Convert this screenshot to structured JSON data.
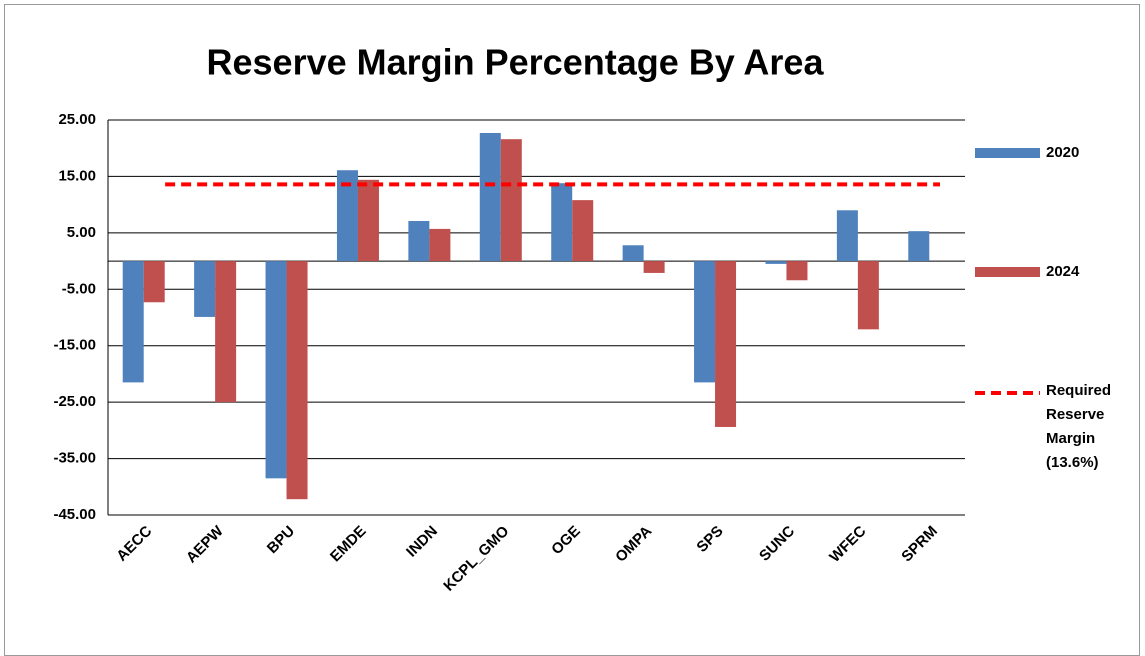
{
  "chart_data": {
    "type": "bar",
    "title": "Reserve Margin Percentage By Area",
    "categories": [
      "AECC",
      "AEPW",
      "BPU",
      "EMDE",
      "INDN",
      "KCPL_GMO",
      "OGE",
      "OMPA",
      "SPS",
      "SUNC",
      "WFEC",
      "SPRM"
    ],
    "series": [
      {
        "name": "2020",
        "color": "#4f81bd",
        "values": [
          -21.5,
          -9.9,
          -38.5,
          16.1,
          7.1,
          22.7,
          13.8,
          2.8,
          -21.5,
          -0.5,
          9.0,
          5.3
        ]
      },
      {
        "name": "2024",
        "color": "#c0504d",
        "values": [
          -7.3,
          -25.0,
          -42.2,
          14.4,
          5.7,
          21.6,
          10.8,
          -2.1,
          -29.4,
          -3.4,
          -12.1,
          null
        ]
      }
    ],
    "reference_line": {
      "name": "Required Reserve Margin (13.6%)",
      "value": 13.6,
      "color": "#ff0000"
    },
    "ylim": [
      -45,
      25
    ],
    "yticks": [
      {
        "value": 25,
        "label": "25.00"
      },
      {
        "value": 15,
        "label": "15.00"
      },
      {
        "value": 5,
        "label": "5.00"
      },
      {
        "value": -5,
        "label": "-5.00"
      },
      {
        "value": -15,
        "label": "-15.00"
      },
      {
        "value": -25,
        "label": "-25.00"
      },
      {
        "value": -35,
        "label": "-35.00"
      },
      {
        "value": -45,
        "label": "-45.00"
      }
    ],
    "grid": true
  }
}
